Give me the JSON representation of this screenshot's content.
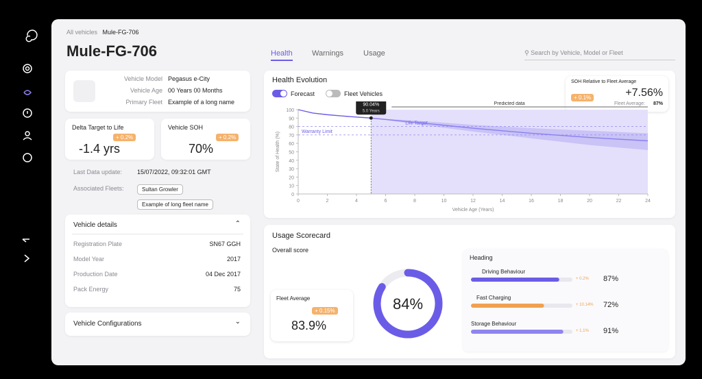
{
  "breadcrumb": [
    "All vehicles",
    "Mule-FG-706"
  ],
  "vehicle_title": "Mule-FG-706",
  "tabs": [
    "Health",
    "Warnings",
    "Usage"
  ],
  "search_placeholder": "Search by Vehicle, Model or Fleet",
  "vehicle_info": {
    "rows": [
      [
        "Vehicle Model",
        "Pegasus e-City"
      ],
      [
        "Vehicle Age",
        "00 Years 00 Months"
      ],
      [
        "Primary Fleet",
        "Example of a long name"
      ]
    ]
  },
  "delta_target": {
    "label": "Delta Target to Life",
    "badge": "+ 0.2%",
    "value": "-1.4 yrs"
  },
  "vehicle_soh": {
    "label": "Vehicle SOH",
    "badge": "+ 0.2%",
    "value": "70%"
  },
  "last_data_update": {
    "label": "Last Data update:",
    "value": "15/07/2022, 09:32:01 GMT"
  },
  "associated_fleets": {
    "label": "Associated Fleets:",
    "fleets": [
      "Sultan Growler",
      "Example of long fleet name"
    ]
  },
  "vehicle_details": {
    "title": "Vehicle details",
    "rows": [
      [
        "Registration Plate",
        "SN67 GGH"
      ],
      [
        "Model Year",
        "2017"
      ],
      [
        "Production Date",
        "04 Dec 2017"
      ],
      [
        "Pack Energy",
        "75"
      ]
    ]
  },
  "vehicle_configurations": "Vehicle Configurations",
  "health_evolution": {
    "type": "line",
    "title": "Health Evolution",
    "toggles": [
      {
        "label": "Forecast",
        "on": true
      },
      {
        "label": "Fleet Vehicles",
        "on": false
      }
    ],
    "soh_relative": {
      "title": "SOH Relative to Fleet Average",
      "badge": "+ 0.1%",
      "value": "+7.56%",
      "fleet_average_label": "Fleet Average:",
      "fleet_average": "87%"
    },
    "y_label": "State of Health (%)",
    "x_label": "Vehicle Age (Years)",
    "xlim": [
      0,
      24
    ],
    "xticks": [
      0,
      2,
      4,
      6,
      8,
      10,
      12,
      14,
      16,
      18,
      20,
      22,
      24
    ],
    "ylim": [
      0,
      100
    ],
    "yticks": [
      0,
      10,
      20,
      30,
      40,
      50,
      60,
      70,
      80,
      90,
      100
    ],
    "predicted_label": "Predicted data",
    "reference_lines": [
      {
        "label": "Life Target",
        "value": 80
      },
      {
        "label": "Warranty Limit",
        "value": 70
      }
    ],
    "series": [
      {
        "color": "#6b5ce7",
        "x": [
          0,
          1,
          2,
          3,
          4,
          5
        ],
        "values": [
          100,
          96,
          94,
          92.5,
          91.2,
          90.04
        ]
      },
      {
        "color": "#8a7ff0",
        "x": [
          5,
          8,
          12,
          16,
          20,
          24
        ],
        "values": [
          90.04,
          85,
          78,
          72,
          67,
          63
        ]
      }
    ],
    "band": {
      "color": "#c9c3f6",
      "x": [
        5,
        8,
        12,
        16,
        20,
        24
      ],
      "upper": [
        90.04,
        87,
        82,
        78,
        75,
        72
      ],
      "lower": [
        90.04,
        83,
        74,
        66,
        58,
        52
      ]
    },
    "region_color": "#e4e0fb",
    "tooltip": {
      "x": 5,
      "y": 90.04,
      "label": "90.04%",
      "x_label": "5.0 Years"
    }
  },
  "usage_scorecard": {
    "title": "Usage Scorecard",
    "overall_label": "Overall score",
    "lim": [
      0,
      100
    ],
    "overall_score": {
      "value": 84,
      "label": "84%",
      "color": "#6b5ce7"
    },
    "fleet_average": {
      "label": "Fleet Average",
      "badge": "+ 0.15%",
      "value": "83.9%"
    },
    "heading": "Heading",
    "rows": [
      {
        "name": "Driving Behaviour",
        "badge": "+ 0.2%",
        "value": 87,
        "value_label": "87%",
        "color": "#6b5ce7"
      },
      {
        "name": "Fast Charging",
        "badge": "+ 10.14%",
        "value": 72,
        "value_label": "72%",
        "color": "#f0a050"
      },
      {
        "name": "Storage Behaviour",
        "badge": "+ 1.1%",
        "value": 91,
        "value_label": "91%",
        "color": "#8f85ef"
      }
    ]
  }
}
